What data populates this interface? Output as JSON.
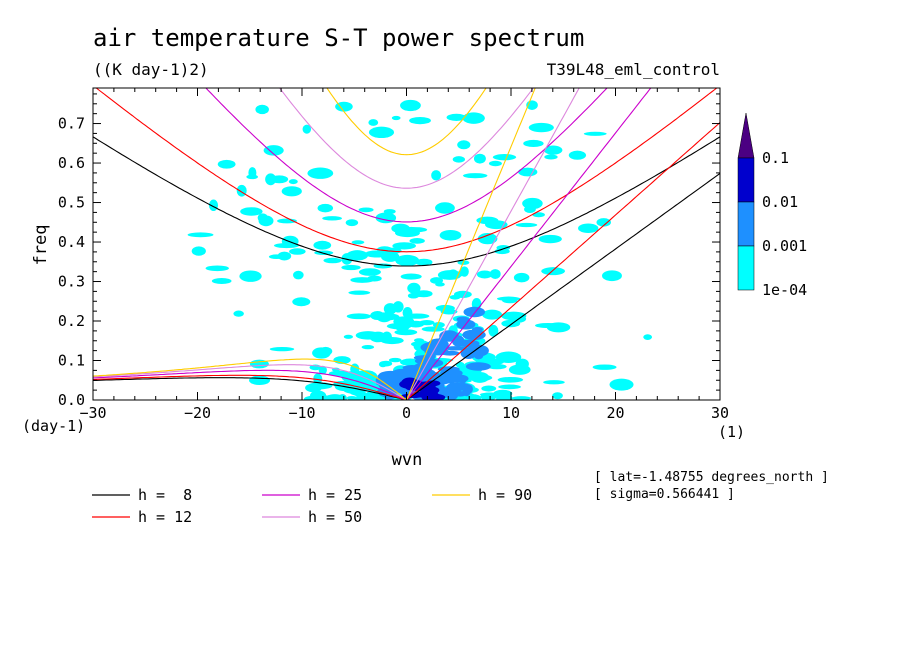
{
  "chart_data": {
    "type": "heatmap",
    "title": "air temperature S-T power spectrum",
    "units": "((K day-1)2)",
    "experiment": "T39L48_eml_control",
    "xlabel": "wvn",
    "ylabel": "freq",
    "x_unit": "(1)",
    "y_unit": "(day-1)",
    "xlim": [
      -30,
      30
    ],
    "ylim": [
      0,
      0.79
    ],
    "x_ticks": [
      -30,
      -20,
      -10,
      0,
      10,
      20,
      30
    ],
    "x_tick_labels": [
      "−30",
      "−20",
      "−10",
      "0",
      "10",
      "20",
      "30"
    ],
    "y_ticks": [
      0,
      0.1,
      0.2,
      0.3,
      0.4,
      0.5,
      0.6,
      0.7
    ],
    "y_tick_labels": [
      "0.0",
      "0.1",
      "0.2",
      "0.3",
      "0.4",
      "0.5",
      "0.6",
      "0.7"
    ],
    "colorbar": {
      "levels": [
        "1e-04",
        "0.001",
        "0.01",
        "0.1"
      ],
      "colors": [
        "#00ffff",
        "#1e90ff",
        "#0000cd",
        "#4b0082"
      ]
    },
    "dispersion_curves": [
      {
        "name": "h =  8",
        "h": 8,
        "color": "#000000"
      },
      {
        "name": "h = 12",
        "h": 12,
        "color": "#ff0000"
      },
      {
        "name": "h = 25",
        "h": 25,
        "color": "#cc00cc"
      },
      {
        "name": "h = 50",
        "h": 50,
        "color": "#dd88dd"
      },
      {
        "name": "h = 90",
        "h": 90,
        "color": "#ffcc00"
      }
    ],
    "annotations": [
      "[ lat=-1.48755 degrees_north ]",
      "[ sigma=0.566441 ]"
    ]
  }
}
